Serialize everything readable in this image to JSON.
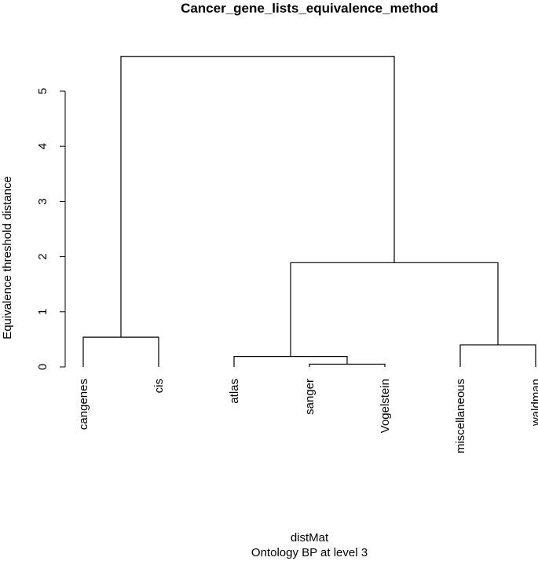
{
  "chart_data": {
    "type": "dendrogram",
    "title": "Cancer_gene_lists_equivalence_method",
    "xlabel": "distMat",
    "sublabel": "Ontology BP at level 3",
    "ylabel": "Equivalence threshold distance",
    "ylim": [
      0,
      5.7
    ],
    "yticks": [
      0,
      1,
      2,
      3,
      4,
      5
    ],
    "leaves": [
      "cangenes",
      "cis",
      "atlas",
      "sanger",
      "Vogelstein",
      "miscellaneous",
      "waldman"
    ],
    "merges": [
      {
        "left": "sanger",
        "right": "Vogelstein",
        "height": 0.05
      },
      {
        "left": "atlas",
        "right": "m1",
        "height": 0.19
      },
      {
        "left": "miscellaneous",
        "right": "waldman",
        "height": 0.4
      },
      {
        "left": "cangenes",
        "right": "cis",
        "height": 0.54
      },
      {
        "left": "m2",
        "right": "m3",
        "height": 1.89
      },
      {
        "left": "m4",
        "right": "m5",
        "height": 5.63
      }
    ]
  }
}
